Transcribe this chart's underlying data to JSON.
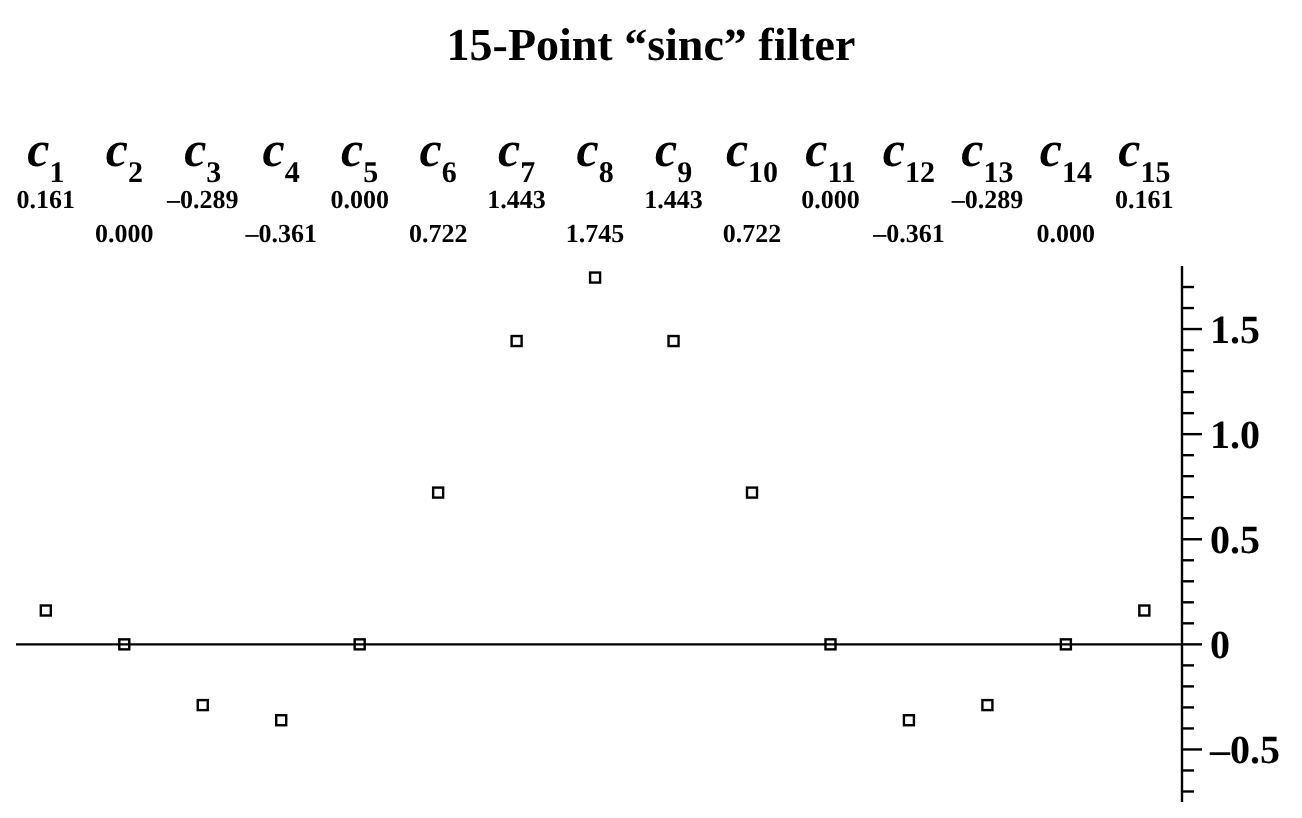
{
  "chart_data": {
    "type": "scatter",
    "title": "15-Point “sinc” filter",
    "categories": [
      "c$_{1}$",
      "c$_{2}$",
      "c$_{3}$",
      "c$_{4}$",
      "c$_{5}$",
      "c$_{6}$",
      "c$_{7}$",
      "c$_{8}$",
      "c$_{9}$",
      "c$_{10}$",
      "c$_{11}$",
      "c$_{12}$",
      "c$_{13}$",
      "c$_{14}$",
      "c$_{15}$"
    ],
    "annotations": [
      "0.161",
      "0.000",
      "–0.289",
      "–0.361",
      "0.000",
      "0.722",
      "1.443",
      "1.745",
      "1.443",
      "0.722",
      "0.000",
      "–0.361",
      "–0.289",
      "0.000",
      "0.161"
    ],
    "series": [
      {
        "color": "#000000",
        "values": [
          0.161,
          0,
          -0.289,
          -0.361,
          0,
          0.722,
          1.443,
          1.745,
          1.443,
          0.722,
          0,
          -0.361,
          -0.289,
          0,
          0.161
        ]
      }
    ],
    "ylim": [
      -0.75,
      1.8
    ],
    "yticks": [
      {
        "value": -0.7,
        "label": null
      },
      {
        "value": -0.6,
        "label": null
      },
      {
        "value": -0.5,
        "label": "–0.5"
      },
      {
        "value": -0.4,
        "label": null
      },
      {
        "value": -0.3,
        "label": null
      },
      {
        "value": -0.2,
        "label": null
      },
      {
        "value": -0.1,
        "label": null
      },
      0,
      {
        "value": 0.1,
        "label": null
      },
      {
        "value": 0.2,
        "label": null
      },
      {
        "value": 0.3,
        "label": null
      },
      {
        "value": 0.4,
        "label": null
      },
      0.5,
      {
        "value": 0.6,
        "label": null
      },
      {
        "value": 0.7,
        "label": null
      },
      {
        "value": 0.8,
        "label": null
      },
      {
        "value": 0.9,
        "label": null
      },
      {
        "value": 1,
        "label": "1.0"
      },
      {
        "value": 1.1,
        "label": null
      },
      {
        "value": 1.2,
        "label": null
      },
      {
        "value": 1.3,
        "label": null
      },
      {
        "value": 1.4,
        "label": null
      },
      1.5,
      {
        "value": 1.6,
        "label": null
      },
      {
        "value": 1.7,
        "label": null
      }
    ],
    "ref_lines": [
      {
        "axis": "y",
        "value": 0
      }
    ],
    "marker": "square",
    "grid": false,
    "legend": false
  }
}
